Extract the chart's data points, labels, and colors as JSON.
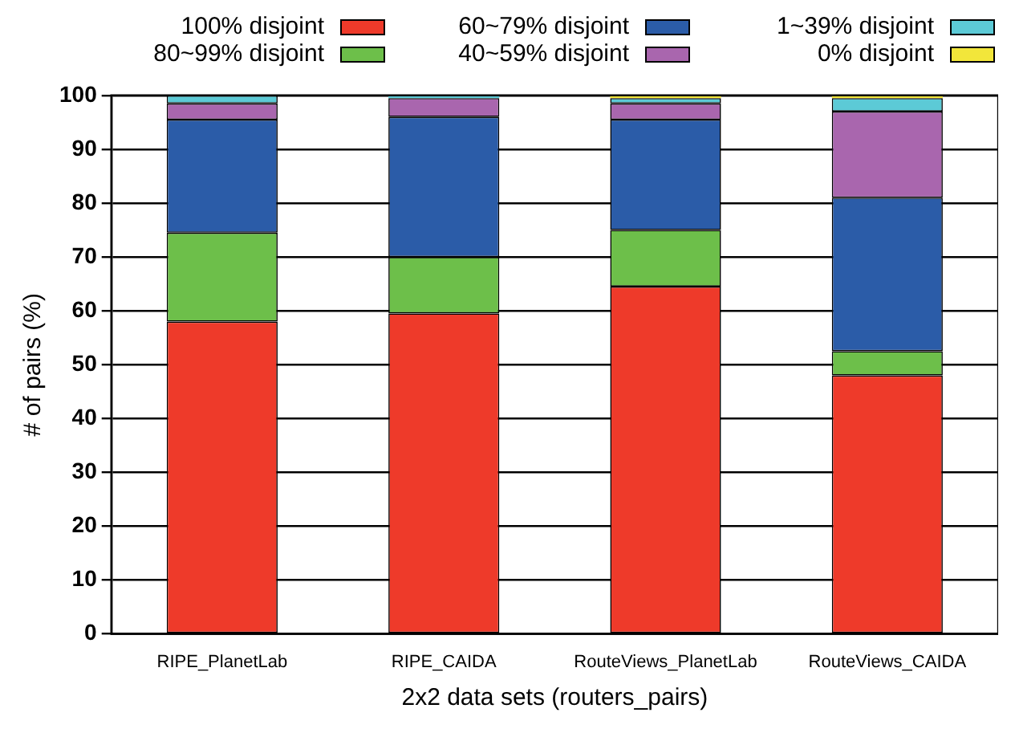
{
  "chart_data": {
    "type": "bar",
    "stacked": true,
    "xlabel": "2x2 data sets (routers_pairs)",
    "ylabel": "# of pairs (%)",
    "categories": [
      "RIPE_PlanetLab",
      "RIPE_CAIDA",
      "RouteViews_PlanetLab",
      "RouteViews_CAIDA"
    ],
    "series": [
      {
        "name": "100% disjoint",
        "color": "#ee3a2a",
        "values": [
          58,
          59.5,
          64.5,
          48
        ]
      },
      {
        "name": "80~99% disjoint",
        "color": "#6dbf4a",
        "values": [
          16.5,
          10.5,
          10.5,
          4.5
        ]
      },
      {
        "name": "60~79% disjoint",
        "color": "#2b5ca8",
        "values": [
          21,
          26,
          20.5,
          28.5
        ]
      },
      {
        "name": "40~59% disjoint",
        "color": "#a966ae",
        "values": [
          3,
          3.5,
          3,
          16
        ]
      },
      {
        "name": "1~39% disjoint",
        "color": "#5ccad6",
        "values": [
          1.5,
          0.5,
          1,
          2.5
        ]
      },
      {
        "name": "0% disjoint",
        "color": "#f2e63a",
        "values": [
          0,
          0,
          0.5,
          0.5
        ]
      }
    ],
    "ylim": [
      0,
      100
    ],
    "yticks": [
      0,
      10,
      20,
      30,
      40,
      50,
      60,
      70,
      80,
      90,
      100
    ],
    "grid": "y",
    "legend": "top"
  }
}
